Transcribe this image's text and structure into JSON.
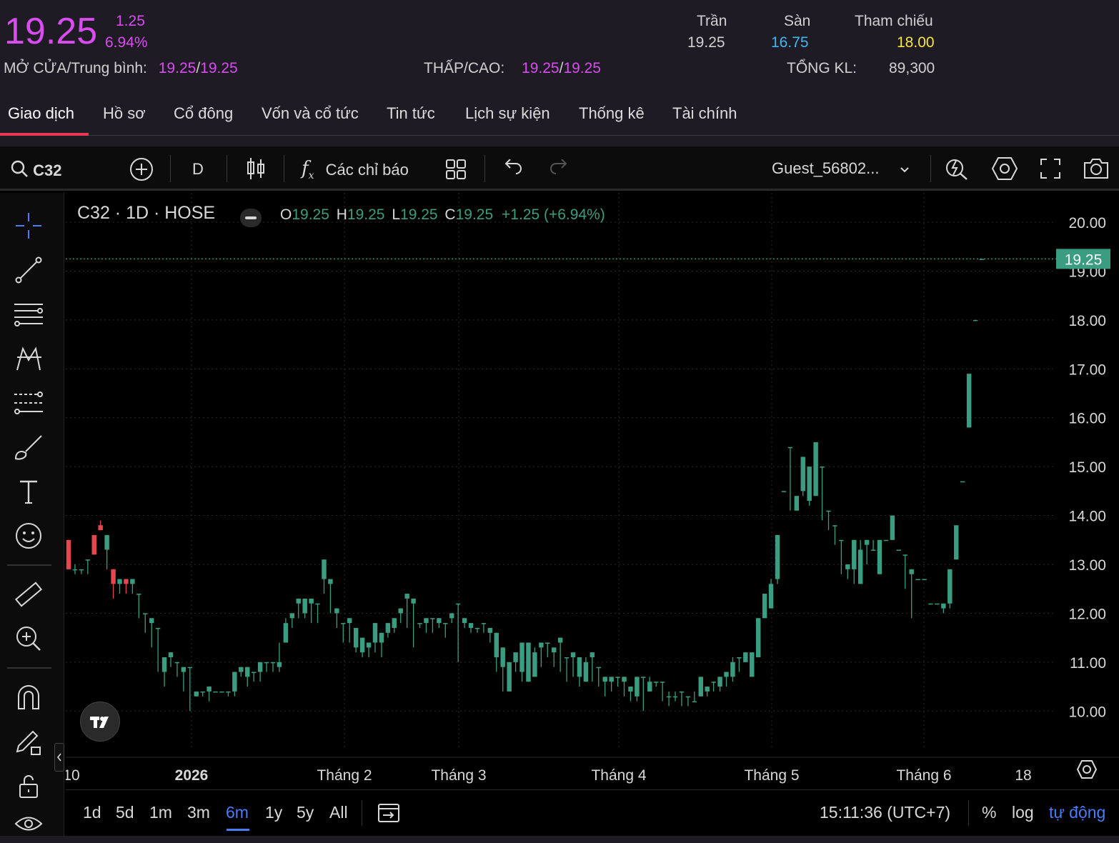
{
  "header": {
    "price": "19.25",
    "change": "1.25",
    "change_pct": "6.94%",
    "open_avg_label": "MỞ CỬA/Trung bình:",
    "open_value": "19.25",
    "slash": "/",
    "avg_value": "19.25",
    "lowhigh_label": "THẤP/CAO:",
    "low_value": "19.25",
    "high_value": "19.25",
    "ceiling_label": "Trần",
    "ceiling_value": "19.25",
    "floor_label": "Sàn",
    "floor_value": "16.75",
    "ref_label": "Tham chiếu",
    "ref_value": "18.00",
    "volume_label": "TỔNG KL:",
    "volume_value": "89,300",
    "colors": {
      "pink": "#d94cf0",
      "cyan": "#3fb8f0",
      "yellow": "#f5e63a"
    }
  },
  "tabs": [
    "Giao dịch",
    "Hồ sơ",
    "Cổ đông",
    "Vốn và cổ tức",
    "Tin tức",
    "Lịch sự kiện",
    "Thống kê",
    "Tài chính"
  ],
  "toolbar": {
    "symbol": "C32",
    "interval": "D",
    "indicators_label": "Các chỉ báo",
    "user": "Guest_56802..."
  },
  "legend": {
    "title": "C32 · 1D · HOSE",
    "o_label": "O",
    "o_value": "19.25",
    "h_label": "H",
    "h_value": "19.25",
    "l_label": "L",
    "l_value": "19.25",
    "c_label": "C",
    "c_value": "19.25",
    "change": "+1.25 (+6.94%)"
  },
  "bottombar": {
    "ranges": [
      "1d",
      "5d",
      "1m",
      "3m",
      "6m",
      "1y",
      "5y",
      "All"
    ],
    "active_range": "6m",
    "time": "15:11:36 (UTC+7)",
    "percent": "%",
    "log": "log",
    "auto": "tự động"
  },
  "chart_data": {
    "type": "candlestick",
    "ylim": [
      9.2,
      20.6
    ],
    "y_ticks": [
      "20.00",
      "19.00",
      "18.00",
      "17.00",
      "16.00",
      "15.00",
      "14.00",
      "13.00",
      "12.00",
      "11.00",
      "10.00"
    ],
    "last_price_label": "19.25",
    "x_ticks": [
      "10",
      "2026",
      "Tháng 2",
      "Tháng 3",
      "Tháng 4",
      "Tháng 5",
      "Tháng 6",
      "18"
    ],
    "up_color": "#3a9c80",
    "down_color": "#e5474f",
    "candles": [
      [
        13.5,
        12.9,
        13.5,
        12.9
      ],
      [
        12.9,
        12.9,
        13.0,
        12.8
      ],
      [
        12.9,
        12.9,
        12.8,
        12.8
      ],
      [
        13.1,
        13.1,
        13.0,
        12.8
      ],
      [
        13.6,
        13.2,
        13.6,
        13.3
      ],
      [
        13.8,
        13.7,
        13.9,
        13.7
      ],
      [
        13.3,
        13.6,
        13.0,
        12.9
      ],
      [
        12.9,
        12.6,
        12.4,
        12.3
      ],
      [
        12.6,
        12.7,
        12.4,
        12.4
      ],
      [
        12.7,
        12.6,
        12.5,
        12.4
      ],
      [
        12.6,
        12.7,
        12.4,
        12.4
      ],
      [
        12.4,
        12.4,
        12.0,
        11.9
      ],
      [
        12.0,
        12.0,
        11.8,
        11.6
      ],
      [
        11.8,
        11.9,
        11.6,
        11.3
      ],
      [
        11.7,
        11.7,
        11.1,
        10.8
      ],
      [
        10.8,
        11.1,
        11.1,
        10.5
      ],
      [
        11.1,
        11.2,
        11.0,
        10.9
      ],
      [
        11.0,
        11.0,
        10.8,
        10.7
      ],
      [
        10.8,
        10.9,
        10.5,
        10.4
      ],
      [
        10.9,
        10.9,
        10.4,
        10.0
      ],
      [
        10.3,
        10.4,
        10.3,
        10.3
      ],
      [
        10.4,
        10.4,
        10.4,
        10.3
      ],
      [
        10.4,
        10.5,
        10.4,
        10.2
      ],
      [
        10.4,
        10.4,
        10.4,
        10.4
      ],
      [
        10.4,
        10.4,
        10.4,
        10.4
      ],
      [
        10.4,
        10.4,
        10.4,
        10.3
      ],
      [
        10.4,
        10.8,
        10.8,
        10.3
      ],
      [
        10.8,
        10.9,
        10.8,
        10.7
      ],
      [
        10.7,
        10.9,
        10.8,
        10.5
      ],
      [
        10.8,
        10.8,
        10.8,
        10.6
      ],
      [
        10.8,
        11.0,
        11.0,
        10.6
      ],
      [
        11.0,
        11.0,
        11.0,
        10.8
      ],
      [
        11.0,
        11.0,
        10.8,
        10.8
      ],
      [
        10.9,
        11.0,
        11.4,
        10.8
      ],
      [
        11.4,
        11.8,
        11.9,
        11.4
      ],
      [
        11.9,
        12.0,
        12.0,
        11.7
      ],
      [
        12.2,
        12.3,
        12.0,
        11.9
      ],
      [
        12.0,
        12.3,
        12.2,
        11.9
      ],
      [
        12.2,
        12.3,
        12.2,
        11.8
      ],
      [
        12.2,
        12.2,
        12.2,
        11.8
      ],
      [
        12.7,
        13.1,
        12.7,
        12.4
      ],
      [
        12.6,
        12.7,
        12.3,
        12.0
      ],
      [
        12.0,
        12.1,
        11.8,
        11.7
      ],
      [
        11.8,
        11.8,
        11.8,
        11.4
      ],
      [
        11.8,
        11.9,
        11.6,
        11.4
      ],
      [
        11.3,
        11.7,
        11.4,
        11.2
      ],
      [
        11.2,
        11.5,
        11.4,
        11.1
      ],
      [
        11.3,
        11.4,
        11.2,
        11.1
      ],
      [
        11.4,
        11.8,
        11.6,
        11.2
      ],
      [
        11.4,
        11.6,
        11.4,
        11.1
      ],
      [
        11.6,
        11.8,
        11.7,
        11.5
      ],
      [
        11.7,
        11.9,
        11.8,
        11.6
      ],
      [
        12.0,
        12.1,
        12.0,
        11.8
      ],
      [
        12.3,
        12.4,
        12.0,
        11.7
      ],
      [
        12.2,
        12.3,
        11.8,
        11.3
      ],
      [
        11.8,
        11.8,
        11.8,
        11.7
      ],
      [
        11.8,
        11.9,
        11.9,
        11.6
      ],
      [
        11.9,
        11.9,
        11.9,
        11.6
      ],
      [
        11.8,
        11.9,
        11.8,
        11.7
      ],
      [
        11.8,
        11.8,
        11.8,
        11.5
      ],
      [
        11.9,
        12.0,
        11.9,
        11.8
      ],
      [
        12.2,
        12.2,
        11.8,
        11.0
      ],
      [
        11.8,
        11.9,
        11.8,
        11.7
      ],
      [
        11.7,
        11.8,
        11.6,
        11.6
      ],
      [
        11.7,
        11.7,
        11.7,
        11.6
      ],
      [
        11.8,
        11.8,
        11.7,
        11.6
      ],
      [
        11.6,
        11.7,
        11.6,
        11.4
      ],
      [
        11.1,
        11.6,
        10.9,
        10.8
      ],
      [
        10.9,
        11.3,
        10.9,
        10.4
      ],
      [
        10.4,
        11.0,
        11.0,
        10.4
      ],
      [
        11.0,
        11.2,
        10.9,
        10.8
      ],
      [
        10.8,
        11.4,
        11.4,
        10.6
      ],
      [
        10.6,
        11.4,
        10.7,
        10.6
      ],
      [
        10.7,
        11.2,
        11.3,
        10.7
      ],
      [
        11.3,
        11.4,
        11.4,
        10.9
      ],
      [
        11.4,
        11.4,
        11.3,
        11.1
      ],
      [
        11.2,
        11.3,
        11.3,
        10.9
      ],
      [
        11.4,
        11.5,
        11.2,
        10.8
      ],
      [
        11.1,
        11.1,
        10.7,
        10.6
      ],
      [
        11.1,
        11.2,
        11.0,
        10.7
      ],
      [
        10.7,
        11.1,
        10.6,
        10.5
      ],
      [
        10.6,
        11.0,
        11.1,
        10.6
      ],
      [
        11.1,
        11.2,
        10.8,
        10.6
      ],
      [
        10.9,
        10.9,
        10.7,
        10.5
      ],
      [
        10.6,
        10.7,
        10.4,
        10.3
      ],
      [
        10.6,
        10.7,
        10.6,
        10.4
      ],
      [
        10.7,
        10.7,
        10.6,
        10.5
      ],
      [
        10.6,
        10.7,
        10.3,
        10.3
      ],
      [
        10.4,
        10.5,
        10.3,
        10.2
      ],
      [
        10.3,
        10.7,
        10.4,
        10.2
      ],
      [
        10.7,
        10.7,
        10.7,
        10.0
      ],
      [
        10.4,
        10.6,
        10.7,
        10.4
      ],
      [
        10.6,
        10.6,
        10.6,
        10.5
      ],
      [
        10.6,
        10.6,
        10.3,
        10.2
      ],
      [
        10.3,
        10.3,
        10.4,
        10.1
      ],
      [
        10.3,
        10.3,
        10.4,
        10.2
      ],
      [
        10.4,
        10.4,
        10.3,
        10.1
      ],
      [
        10.3,
        10.3,
        10.2,
        10.1
      ],
      [
        10.2,
        10.2,
        10.4,
        10.2
      ],
      [
        10.3,
        10.7,
        10.6,
        10.3
      ],
      [
        10.4,
        10.5,
        10.5,
        10.3
      ],
      [
        10.6,
        10.6,
        10.6,
        10.4
      ],
      [
        10.5,
        10.7,
        10.7,
        10.4
      ],
      [
        10.7,
        10.8,
        10.7,
        10.5
      ],
      [
        10.7,
        11.0,
        11.1,
        10.6
      ],
      [
        11.1,
        11.1,
        11.1,
        10.8
      ],
      [
        11.0,
        11.2,
        11.2,
        11.0
      ],
      [
        10.7,
        11.2,
        11.2,
        10.7
      ],
      [
        11.1,
        11.9,
        11.9,
        11.1
      ],
      [
        11.9,
        12.4,
        12.2,
        11.9
      ],
      [
        12.1,
        12.6,
        12.7,
        12.1
      ],
      [
        12.7,
        13.6,
        13.6,
        12.6
      ],
      [
        14.5,
        14.5,
        14.5,
        14.5
      ],
      [
        15.4,
        15.4,
        14.1,
        14.1
      ],
      [
        14.1,
        14.4,
        14.1,
        14.1
      ],
      [
        14.5,
        15.2,
        15.2,
        14.4
      ],
      [
        14.3,
        15.0,
        14.3,
        14.2
      ],
      [
        14.4,
        15.5,
        15.0,
        14.4
      ],
      [
        15.0,
        15.0,
        14.0,
        13.9
      ],
      [
        14.1,
        14.1,
        13.8,
        13.7
      ],
      [
        13.8,
        13.8,
        13.5,
        13.4
      ],
      [
        13.5,
        13.5,
        12.9,
        12.8
      ],
      [
        12.9,
        13.0,
        12.9,
        12.7
      ],
      [
        12.9,
        13.5,
        13.5,
        12.6
      ],
      [
        12.6,
        13.3,
        13.5,
        12.6
      ],
      [
        13.4,
        13.5,
        13.2,
        13.0
      ],
      [
        13.3,
        13.3,
        13.5,
        13.3
      ],
      [
        12.8,
        13.5,
        13.5,
        12.8
      ],
      [
        13.5,
        13.5,
        13.5,
        13.5
      ],
      [
        13.5,
        14.0,
        14.0,
        13.5
      ],
      [
        13.3,
        13.3,
        13.3,
        13.3
      ],
      [
        13.2,
        13.2,
        12.6,
        12.5
      ],
      [
        12.8,
        12.9,
        12.0,
        11.9
      ],
      [
        12.7,
        12.7,
        12.7,
        12.7
      ],
      [
        12.7,
        12.7,
        12.7,
        12.7
      ],
      [
        12.2,
        12.2,
        12.2,
        12.2
      ],
      [
        12.2,
        12.2,
        12.2,
        12.2
      ],
      [
        12.1,
        12.2,
        12.0,
        12.0
      ],
      [
        12.2,
        12.9,
        12.2,
        12.1
      ],
      [
        13.1,
        13.8,
        13.8,
        13.1
      ],
      [
        14.7,
        14.7,
        14.7,
        14.7
      ],
      [
        15.8,
        16.9,
        15.8,
        15.8
      ],
      [
        18.0,
        18.0,
        18.0,
        18.0
      ],
      [
        19.25,
        19.25,
        19.25,
        19.25
      ]
    ]
  }
}
